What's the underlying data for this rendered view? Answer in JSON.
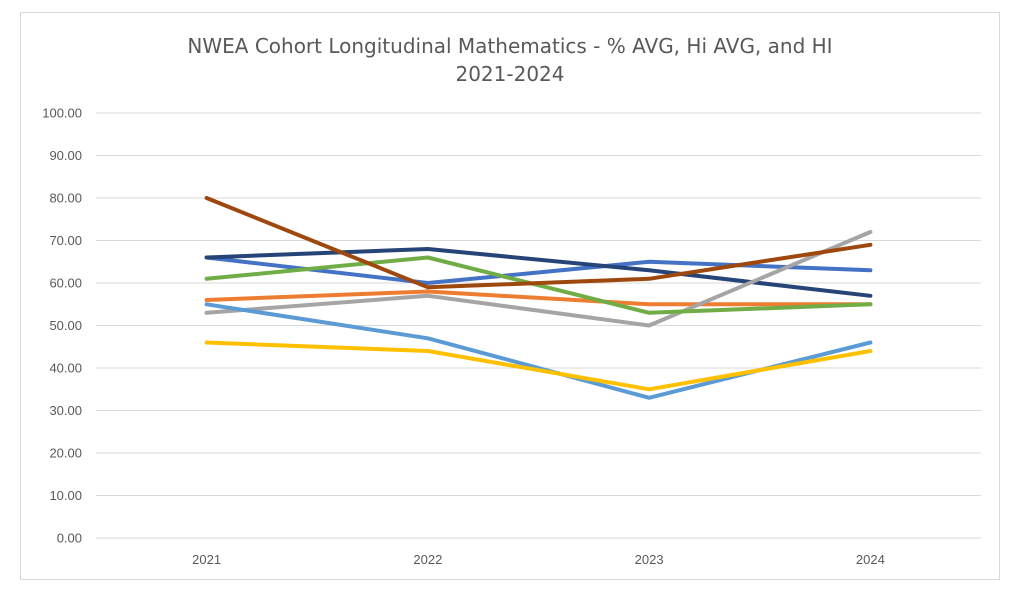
{
  "chart_data": {
    "type": "line",
    "title": [
      "NWEA Cohort Longitudinal Mathematics - % AVG, Hi AVG, and HI",
      "2021-2024"
    ],
    "xlabel": "",
    "ylabel": "",
    "categories": [
      "2021",
      "2022",
      "2023",
      "2024"
    ],
    "ylim": [
      0,
      100
    ],
    "yticks": [
      "0.00",
      "10.00",
      "20.00",
      "30.00",
      "40.00",
      "50.00",
      "60.00",
      "70.00",
      "80.00",
      "90.00",
      "100.00"
    ],
    "grid": true,
    "legend": "none",
    "series": [
      {
        "color": "#4472c4",
        "values": [
          66,
          60,
          65,
          63
        ]
      },
      {
        "color": "#264478",
        "values": [
          66,
          68,
          63,
          57
        ]
      },
      {
        "color": "#ed7d31",
        "values": [
          56,
          58,
          55,
          55
        ]
      },
      {
        "color": "#a5a5a5",
        "values": [
          53,
          57,
          50,
          72
        ]
      },
      {
        "color": "#70ad47",
        "values": [
          61,
          66,
          53,
          55
        ]
      },
      {
        "color": "#9e480e",
        "values": [
          80,
          59,
          61,
          69
        ]
      },
      {
        "color": "#5b9bd5",
        "values": [
          55,
          47,
          33,
          46
        ]
      },
      {
        "color": "#ffc000",
        "values": [
          46,
          44,
          35,
          44
        ]
      }
    ]
  }
}
